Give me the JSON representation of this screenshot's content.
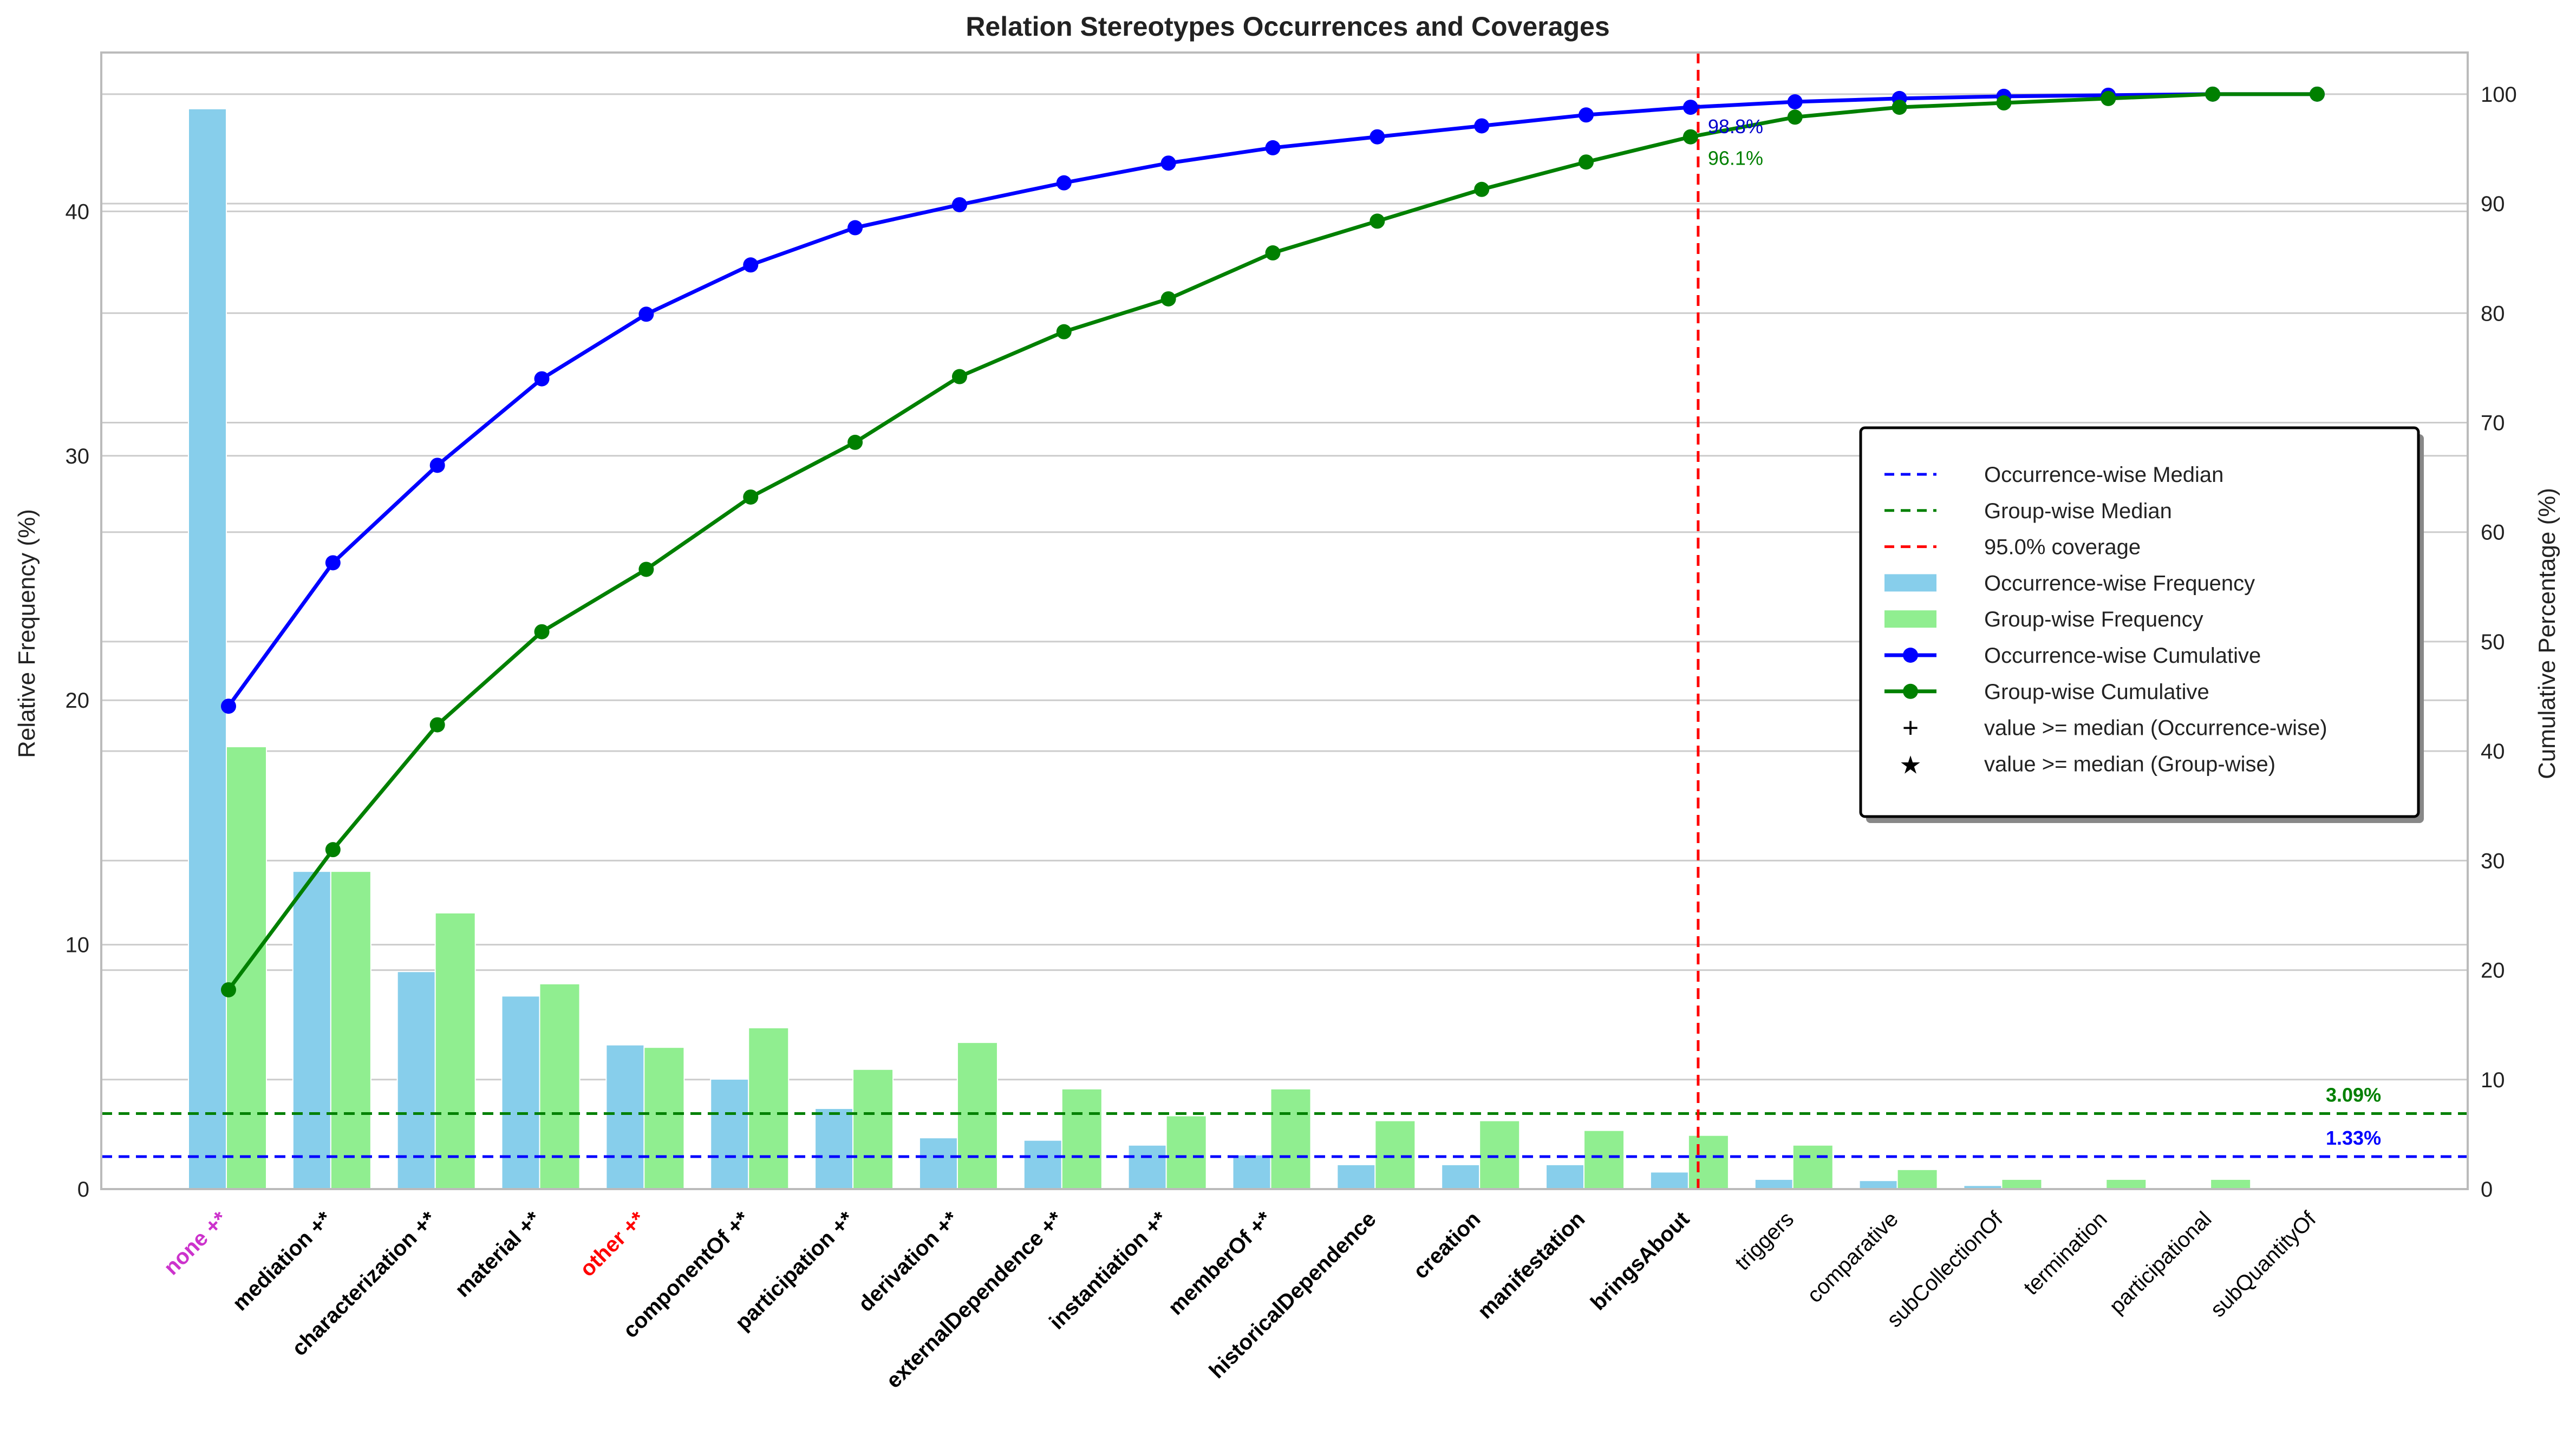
{
  "chart_data": {
    "type": "bar",
    "title": "Relation Stereotypes Occurrences and Coverages",
    "ylabel_left": "Relative Frequency (%)",
    "ylabel_right": "Cumulative Percentage (%)",
    "y_left_range": [
      0,
      46.5
    ],
    "y_left_ticks": [
      0,
      10,
      20,
      30,
      40
    ],
    "y_right_range": [
      0,
      103.8
    ],
    "y_right_ticks": [
      0,
      10,
      20,
      30,
      40,
      50,
      60,
      70,
      80,
      90,
      100
    ],
    "grid": true,
    "legend_position": "center-right",
    "categories": [
      {
        "label": "none +*",
        "color": "#cc33cc",
        "bold": true
      },
      {
        "label": "mediation +*",
        "color": "#000000",
        "bold": true
      },
      {
        "label": "characterization +*",
        "color": "#000000",
        "bold": true
      },
      {
        "label": "material +*",
        "color": "#000000",
        "bold": true
      },
      {
        "label": "other +*",
        "color": "#ff0000",
        "bold": true
      },
      {
        "label": "componentOf +*",
        "color": "#000000",
        "bold": true
      },
      {
        "label": "participation +*",
        "color": "#000000",
        "bold": true
      },
      {
        "label": "derivation +*",
        "color": "#000000",
        "bold": true
      },
      {
        "label": "externalDependence +*",
        "color": "#000000",
        "bold": true
      },
      {
        "label": "instantiation +*",
        "color": "#000000",
        "bold": true
      },
      {
        "label": "memberOf +*",
        "color": "#000000",
        "bold": true
      },
      {
        "label": "historicalDependence",
        "color": "#000000",
        "bold": true
      },
      {
        "label": "creation",
        "color": "#000000",
        "bold": true
      },
      {
        "label": "manifestation",
        "color": "#000000",
        "bold": true
      },
      {
        "label": "bringsAbout",
        "color": "#000000",
        "bold": true
      },
      {
        "label": "triggers",
        "color": "#000000",
        "bold": false
      },
      {
        "label": "comparative",
        "color": "#000000",
        "bold": false
      },
      {
        "label": "subCollectionOf",
        "color": "#000000",
        "bold": false
      },
      {
        "label": "termination",
        "color": "#000000",
        "bold": false
      },
      {
        "label": "participational",
        "color": "#000000",
        "bold": false
      },
      {
        "label": "subQuantityOf",
        "color": "#000000",
        "bold": false
      }
    ],
    "series": [
      {
        "name": "Occurrence-wise Frequency",
        "kind": "bar",
        "axis": "left",
        "color": "#87ceeb",
        "values": [
          44.2,
          13.0,
          8.9,
          7.9,
          5.9,
          4.5,
          3.3,
          2.1,
          2.0,
          1.8,
          1.4,
          1.0,
          1.0,
          1.0,
          0.7,
          0.4,
          0.35,
          0.15,
          0.0,
          0.0,
          0.0
        ]
      },
      {
        "name": "Group-wise Frequency",
        "kind": "bar",
        "axis": "left",
        "color": "#90ee90",
        "values": [
          18.1,
          13.0,
          11.3,
          8.4,
          5.8,
          6.6,
          4.9,
          6.0,
          4.1,
          3.0,
          4.1,
          2.8,
          2.8,
          2.4,
          2.2,
          1.8,
          0.8,
          0.4,
          0.4,
          0.4,
          0.0
        ]
      },
      {
        "name": "Occurrence-wise Cumulative",
        "kind": "line",
        "axis": "right",
        "color": "#0000ff",
        "values": [
          44.1,
          57.2,
          66.1,
          74.0,
          79.9,
          84.4,
          87.8,
          89.9,
          91.9,
          93.7,
          95.1,
          96.1,
          97.1,
          98.1,
          98.8,
          99.3,
          99.6,
          99.8,
          99.9,
          100.0,
          100.0
        ]
      },
      {
        "name": "Group-wise Cumulative",
        "kind": "line",
        "axis": "right",
        "color": "#008000",
        "values": [
          18.2,
          31.0,
          42.4,
          50.9,
          56.6,
          63.2,
          68.2,
          74.2,
          78.3,
          81.3,
          85.5,
          88.4,
          91.3,
          93.8,
          96.1,
          97.9,
          98.8,
          99.2,
          99.6,
          100.0,
          100.0
        ]
      }
    ],
    "reference_lines": [
      {
        "name": "Occurrence-wise Median",
        "axis": "left",
        "value": 1.33,
        "label": "1.33%",
        "color": "#0000ff"
      },
      {
        "name": "Group-wise Median",
        "axis": "left",
        "value": 3.09,
        "label": "3.09%",
        "color": "#008000"
      },
      {
        "name": "95.0% coverage",
        "category_index": 14,
        "color": "#ff0000"
      }
    ],
    "annotations": [
      {
        "text": "98.8%",
        "color": "#0000cc"
      },
      {
        "text": "96.1%",
        "color": "#008000"
      }
    ],
    "legend": [
      {
        "label": "Occurrence-wise Median",
        "marker": "dashed-line",
        "color": "#0000ff"
      },
      {
        "label": "Group-wise Median",
        "marker": "dashed-line",
        "color": "#008000"
      },
      {
        "label": "95.0% coverage",
        "marker": "dashed-line",
        "color": "#ff0000"
      },
      {
        "label": "Occurrence-wise Frequency",
        "marker": "bar",
        "color": "#87ceeb"
      },
      {
        "label": "Group-wise Frequency",
        "marker": "bar",
        "color": "#90ee90"
      },
      {
        "label": "Occurrence-wise Cumulative",
        "marker": "line-dot",
        "color": "#0000ff"
      },
      {
        "label": "Group-wise Cumulative",
        "marker": "line-dot",
        "color": "#008000"
      },
      {
        "label": "value >= median (Occurrence-wise)",
        "marker": "+",
        "color": "#000000"
      },
      {
        "label": "value >= median (Group-wise)",
        "marker": "★",
        "color": "#000000"
      }
    ]
  }
}
